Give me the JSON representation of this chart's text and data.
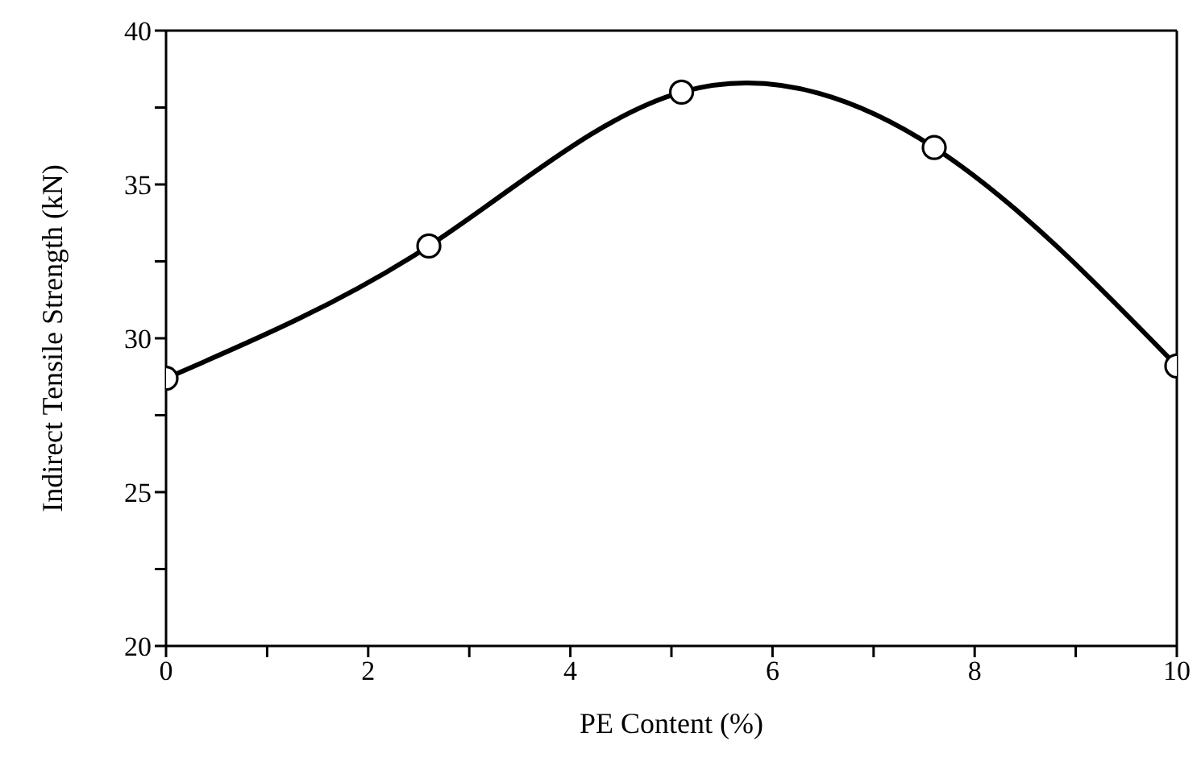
{
  "chart_data": {
    "type": "line",
    "xlabel": "PE Content (%)",
    "ylabel": "Indirect Tensile Strength (kN)",
    "x": [
      0,
      2.6,
      5.1,
      7.6,
      10
    ],
    "series": [
      {
        "color": "#000000",
        "values": [
          28.7,
          33.0,
          38.0,
          36.2,
          29.1
        ]
      }
    ],
    "xlim": [
      0,
      10
    ],
    "xticks": [
      0,
      {
        "value": 1,
        "label": null
      },
      2,
      {
        "value": 3,
        "label": null
      },
      4,
      {
        "value": 5,
        "label": null
      },
      6,
      {
        "value": 7,
        "label": null
      },
      8,
      {
        "value": 9,
        "label": null
      },
      10
    ],
    "ylim": [
      20,
      40
    ],
    "yticks": [
      20,
      {
        "value": 22.5,
        "label": null
      },
      25,
      {
        "value": 27.5,
        "label": null
      },
      30,
      {
        "value": 32.5,
        "label": null
      },
      35,
      {
        "value": 37.5,
        "label": null
      },
      40
    ],
    "grid": false,
    "legend": false,
    "marker": "circle",
    "line_style": "solid"
  }
}
